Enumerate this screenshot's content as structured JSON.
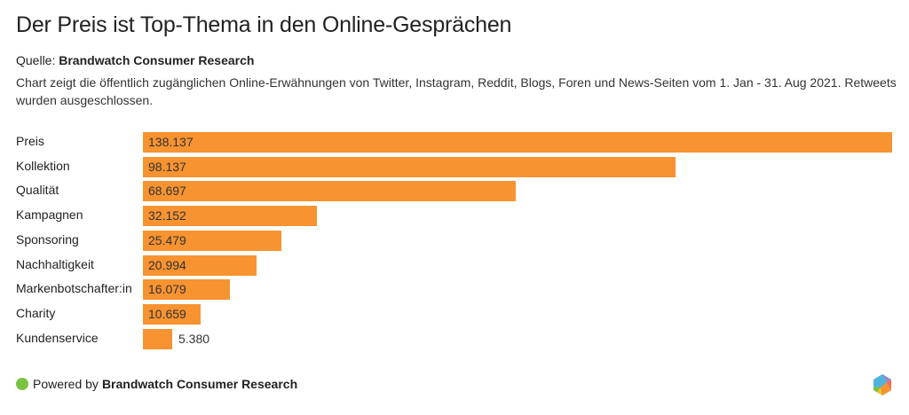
{
  "header": {
    "title": "Der Preis ist Top-Thema in den Online-Gesprächen",
    "source_prefix": "Quelle:",
    "source_name": "Brandwatch Consumer Research",
    "description": "Chart zeigt die öffentlich zugänglichen Online-Erwähnungen von Twitter, Instagram, Reddit, Blogs, Foren und News-Seiten vom 1. Jan - 31. Aug 2021. Retweets wurden ausgeschlossen."
  },
  "footer": {
    "powered_prefix": "Powered by",
    "powered_name": "Brandwatch Consumer Research",
    "logo_icon": "brandwatch-hexagon-logo"
  },
  "colors": {
    "bar": "#f79331",
    "powered_dot": "#7cc242"
  },
  "chart_data": {
    "type": "bar",
    "orientation": "horizontal",
    "title": "Der Preis ist Top-Thema in den Online-Gesprächen",
    "xlabel": "",
    "ylabel": "",
    "categories": [
      "Preis",
      "Kollektion",
      "Qualität",
      "Kampagnen",
      "Sponsoring",
      "Nachhaltigkeit",
      "Markenbotschafter:in",
      "Charity",
      "Kundenservice"
    ],
    "values": [
      138137,
      98137,
      68697,
      32152,
      25479,
      20994,
      16079,
      10659,
      5380
    ],
    "value_labels": [
      "138.137",
      "98.137",
      "68.697",
      "32.152",
      "25.479",
      "20.994",
      "16.079",
      "10.659",
      "5.380"
    ],
    "xlim": [
      0,
      138137
    ],
    "grid": false,
    "legend": "none"
  }
}
